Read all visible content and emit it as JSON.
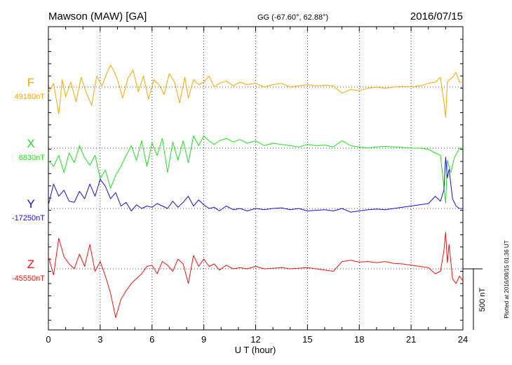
{
  "header": {
    "station": "Mawson (MAW)  [GA]",
    "coords": "GG (-67.60°,  62.88°)",
    "date": "2016/07/15"
  },
  "side_note": "Plotted at 2016/08/15 01:36 UT",
  "scale_bar_label": "500 nT",
  "chart_data": {
    "type": "line",
    "xlabel": "U T (hour)",
    "xlim": [
      0,
      24
    ],
    "x_ticks": [
      "0",
      "3",
      "6",
      "9",
      "12",
      "15",
      "18",
      "21",
      "24"
    ],
    "scale_bar_nT": 500,
    "series": [
      {
        "name": "F",
        "baseline_label": "49180nT",
        "color": "#f5a800",
        "x": [
          0,
          0.3,
          0.6,
          0.8,
          1.0,
          1.3,
          1.6,
          1.9,
          2.2,
          2.5,
          2.8,
          3.1,
          3.4,
          3.6,
          3.8,
          4.0,
          4.3,
          4.6,
          4.9,
          5.2,
          5.5,
          5.8,
          6.1,
          6.4,
          6.7,
          7.0,
          7.3,
          7.6,
          7.9,
          8.1,
          8.4,
          8.7,
          9.0,
          9.3,
          9.6,
          9.9,
          10.3,
          10.7,
          11.1,
          11.5,
          12.0,
          12.5,
          13.0,
          13.5,
          14.0,
          14.5,
          15.0,
          15.5,
          16.0,
          16.5,
          17.0,
          17.5,
          18.0,
          18.5,
          19.0,
          19.5,
          20.0,
          20.5,
          21.0,
          21.5,
          22.0,
          22.4,
          22.7,
          22.9,
          23.0,
          23.1,
          23.2,
          23.4,
          23.6,
          23.8,
          24.0
        ],
        "y": [
          -50,
          30,
          -220,
          60,
          -80,
          40,
          -120,
          80,
          -50,
          -150,
          90,
          10,
          120,
          180,
          130,
          60,
          -90,
          70,
          140,
          -40,
          90,
          -100,
          60,
          20,
          -60,
          110,
          40,
          -130,
          80,
          -90,
          60,
          20,
          40,
          90,
          0,
          30,
          50,
          10,
          40,
          20,
          30,
          0,
          20,
          30,
          0,
          10,
          20,
          10,
          15,
          10,
          -50,
          -20,
          -30,
          -10,
          0,
          -10,
          0,
          5,
          0,
          10,
          30,
          40,
          80,
          -120,
          -250,
          40,
          60,
          80,
          120,
          40,
          40
        ]
      },
      {
        "name": "X",
        "baseline_label": "6830nT",
        "color": "#22dd22",
        "x": [
          0,
          0.3,
          0.6,
          0.9,
          1.2,
          1.5,
          1.8,
          2.1,
          2.4,
          2.7,
          3.0,
          3.3,
          3.6,
          3.9,
          4.2,
          4.5,
          4.8,
          5.1,
          5.4,
          5.7,
          6.0,
          6.3,
          6.6,
          6.9,
          7.2,
          7.5,
          7.8,
          8.1,
          8.4,
          8.7,
          9.0,
          9.3,
          9.6,
          9.9,
          10.3,
          10.7,
          11.1,
          11.5,
          12.0,
          12.5,
          13.0,
          13.5,
          14.0,
          14.5,
          15.0,
          15.5,
          16.0,
          16.5,
          17.0,
          17.5,
          18.0,
          18.5,
          19.0,
          19.5,
          20.0,
          20.5,
          21.0,
          21.5,
          22.0,
          22.4,
          22.7,
          22.9,
          23.0,
          23.1,
          23.3,
          23.5,
          23.8,
          24.0
        ],
        "y": [
          -100,
          -150,
          -60,
          -200,
          -40,
          -120,
          20,
          -80,
          -140,
          -60,
          -250,
          -180,
          -330,
          -220,
          -150,
          -60,
          20,
          -100,
          60,
          -150,
          40,
          -60,
          80,
          -200,
          50,
          -100,
          60,
          -120,
          100,
          20,
          100,
          60,
          30,
          60,
          80,
          50,
          70,
          40,
          60,
          20,
          40,
          30,
          20,
          10,
          30,
          20,
          25,
          10,
          60,
          20,
          10,
          0,
          10,
          15,
          10,
          5,
          0,
          0,
          -10,
          -40,
          -60,
          -320,
          -450,
          -100,
          -200,
          -80,
          0,
          0
        ]
      },
      {
        "name": "Y",
        "baseline_label": "-17250nT",
        "color": "#1111cc",
        "x": [
          0,
          0.3,
          0.6,
          0.9,
          1.2,
          1.5,
          1.8,
          2.1,
          2.4,
          2.7,
          3.0,
          3.3,
          3.6,
          3.9,
          4.2,
          4.5,
          4.8,
          5.1,
          5.4,
          5.7,
          6.0,
          6.3,
          6.6,
          6.9,
          7.2,
          7.5,
          7.8,
          8.1,
          8.4,
          8.7,
          9.0,
          9.3,
          9.6,
          9.9,
          10.3,
          10.7,
          11.1,
          11.5,
          12.0,
          12.5,
          13.0,
          13.5,
          14.0,
          14.5,
          15.0,
          15.5,
          16.0,
          16.5,
          17.0,
          17.5,
          18.0,
          18.5,
          19.0,
          19.5,
          20.0,
          20.5,
          21.0,
          21.5,
          22.0,
          22.4,
          22.7,
          22.9,
          23.0,
          23.1,
          23.2,
          23.4,
          23.6,
          23.8,
          24.0
        ],
        "y": [
          30,
          200,
          100,
          150,
          60,
          50,
          140,
          80,
          200,
          100,
          240,
          180,
          80,
          130,
          20,
          50,
          -20,
          30,
          0,
          20,
          10,
          40,
          20,
          0,
          60,
          10,
          50,
          100,
          20,
          70,
          30,
          0,
          10,
          -20,
          20,
          -10,
          0,
          -20,
          0,
          -10,
          0,
          5,
          -10,
          0,
          -20,
          -15,
          -10,
          -20,
          0,
          -30,
          -20,
          -10,
          -5,
          -10,
          0,
          10,
          20,
          30,
          40,
          100,
          60,
          150,
          420,
          250,
          320,
          80,
          20,
          0,
          0
        ]
      },
      {
        "name": "Z",
        "baseline_label": "-45550nT",
        "color": "#ee1111",
        "x": [
          0,
          0.3,
          0.6,
          0.9,
          1.2,
          1.5,
          1.8,
          2.1,
          2.4,
          2.7,
          3.0,
          3.3,
          3.6,
          3.9,
          4.2,
          4.5,
          4.8,
          5.1,
          5.4,
          5.7,
          6.0,
          6.3,
          6.6,
          6.9,
          7.2,
          7.5,
          7.8,
          8.1,
          8.4,
          8.7,
          9.0,
          9.3,
          9.6,
          9.9,
          10.3,
          10.7,
          11.1,
          11.5,
          12.0,
          12.5,
          13.0,
          13.5,
          14.0,
          14.5,
          15.0,
          15.5,
          16.0,
          16.5,
          17.0,
          17.5,
          18.0,
          18.5,
          19.0,
          19.5,
          20.0,
          20.5,
          21.0,
          21.5,
          22.0,
          22.4,
          22.7,
          22.9,
          23.0,
          23.1,
          23.2,
          23.4,
          23.6,
          23.8,
          24.0
        ],
        "y": [
          100,
          -50,
          250,
          100,
          40,
          0,
          120,
          20,
          200,
          -20,
          60,
          -60,
          -200,
          -400,
          -250,
          -180,
          -120,
          -80,
          -40,
          20,
          30,
          -40,
          60,
          30,
          -20,
          80,
          40,
          -120,
          110,
          20,
          80,
          20,
          40,
          -10,
          30,
          0,
          10,
          0,
          20,
          0,
          5,
          10,
          0,
          5,
          10,
          0,
          -10,
          -20,
          60,
          70,
          55,
          60,
          50,
          60,
          45,
          40,
          30,
          20,
          10,
          -40,
          -20,
          150,
          300,
          50,
          200,
          -80,
          -120,
          -60,
          -100
        ]
      }
    ]
  }
}
